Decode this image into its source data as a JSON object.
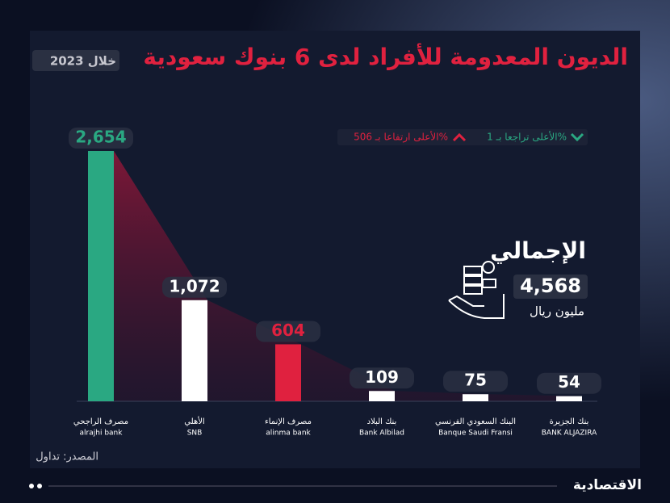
{
  "chart_data": {
    "type": "bar",
    "title": "الديون المعدومة للأفراد لدى 6 بنوك سعودية",
    "subtitle": "خلال 2023",
    "categories": [
      "alrajhi bank",
      "SNB",
      "alinma bank",
      "Bank Albilad",
      "Banque Saudi Fransi",
      "BANK ALJAZIRA"
    ],
    "category_labels_ar": [
      "مصرف الراجحي",
      "الأهلي",
      "مصرف الإنماء",
      "بنك البلاد",
      "البنك السعودي الفرنسي",
      "بنك الجزيرة"
    ],
    "values": [
      2654,
      1072,
      604,
      109,
      75,
      54
    ],
    "value_labels": [
      "2,654",
      "1,072",
      "604",
      "109",
      "75",
      "54"
    ],
    "colors": [
      "#2aa882",
      "#ffffff",
      "#e0213f",
      "#ffffff",
      "#ffffff",
      "#ffffff"
    ],
    "legend": [
      "الأعلى تراجعا بـ 1%",
      "الأعلى ارتفاعا بـ 506%"
    ],
    "total": {
      "label": "الإجمالي",
      "value": "4,568",
      "unit": "مليون ريال"
    },
    "source": "المصدر: تداول",
    "brand": "الاقتصادية"
  }
}
